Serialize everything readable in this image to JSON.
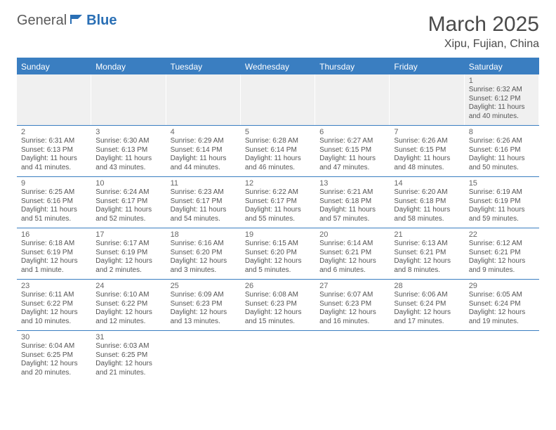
{
  "logo": {
    "text1": "General",
    "text2": "Blue"
  },
  "title": "March 2025",
  "location": "Xipu, Fujian, China",
  "colors": {
    "header_bg": "#3a7ec1",
    "header_text": "#ffffff",
    "border": "#3a7ec1",
    "first_row_bg": "#f0f0f0",
    "text": "#555555",
    "daynum": "#666666",
    "logo_blue": "#2a6fb5"
  },
  "day_headers": [
    "Sunday",
    "Monday",
    "Tuesday",
    "Wednesday",
    "Thursday",
    "Friday",
    "Saturday"
  ],
  "weeks": [
    [
      {
        "empty": true
      },
      {
        "empty": true
      },
      {
        "empty": true
      },
      {
        "empty": true
      },
      {
        "empty": true
      },
      {
        "empty": true
      },
      {
        "n": "1",
        "sr": "Sunrise: 6:32 AM",
        "ss": "Sunset: 6:12 PM",
        "dl": "Daylight: 11 hours and 40 minutes."
      }
    ],
    [
      {
        "n": "2",
        "sr": "Sunrise: 6:31 AM",
        "ss": "Sunset: 6:13 PM",
        "dl": "Daylight: 11 hours and 41 minutes."
      },
      {
        "n": "3",
        "sr": "Sunrise: 6:30 AM",
        "ss": "Sunset: 6:13 PM",
        "dl": "Daylight: 11 hours and 43 minutes."
      },
      {
        "n": "4",
        "sr": "Sunrise: 6:29 AM",
        "ss": "Sunset: 6:14 PM",
        "dl": "Daylight: 11 hours and 44 minutes."
      },
      {
        "n": "5",
        "sr": "Sunrise: 6:28 AM",
        "ss": "Sunset: 6:14 PM",
        "dl": "Daylight: 11 hours and 46 minutes."
      },
      {
        "n": "6",
        "sr": "Sunrise: 6:27 AM",
        "ss": "Sunset: 6:15 PM",
        "dl": "Daylight: 11 hours and 47 minutes."
      },
      {
        "n": "7",
        "sr": "Sunrise: 6:26 AM",
        "ss": "Sunset: 6:15 PM",
        "dl": "Daylight: 11 hours and 48 minutes."
      },
      {
        "n": "8",
        "sr": "Sunrise: 6:26 AM",
        "ss": "Sunset: 6:16 PM",
        "dl": "Daylight: 11 hours and 50 minutes."
      }
    ],
    [
      {
        "n": "9",
        "sr": "Sunrise: 6:25 AM",
        "ss": "Sunset: 6:16 PM",
        "dl": "Daylight: 11 hours and 51 minutes."
      },
      {
        "n": "10",
        "sr": "Sunrise: 6:24 AM",
        "ss": "Sunset: 6:17 PM",
        "dl": "Daylight: 11 hours and 52 minutes."
      },
      {
        "n": "11",
        "sr": "Sunrise: 6:23 AM",
        "ss": "Sunset: 6:17 PM",
        "dl": "Daylight: 11 hours and 54 minutes."
      },
      {
        "n": "12",
        "sr": "Sunrise: 6:22 AM",
        "ss": "Sunset: 6:17 PM",
        "dl": "Daylight: 11 hours and 55 minutes."
      },
      {
        "n": "13",
        "sr": "Sunrise: 6:21 AM",
        "ss": "Sunset: 6:18 PM",
        "dl": "Daylight: 11 hours and 57 minutes."
      },
      {
        "n": "14",
        "sr": "Sunrise: 6:20 AM",
        "ss": "Sunset: 6:18 PM",
        "dl": "Daylight: 11 hours and 58 minutes."
      },
      {
        "n": "15",
        "sr": "Sunrise: 6:19 AM",
        "ss": "Sunset: 6:19 PM",
        "dl": "Daylight: 11 hours and 59 minutes."
      }
    ],
    [
      {
        "n": "16",
        "sr": "Sunrise: 6:18 AM",
        "ss": "Sunset: 6:19 PM",
        "dl": "Daylight: 12 hours and 1 minute."
      },
      {
        "n": "17",
        "sr": "Sunrise: 6:17 AM",
        "ss": "Sunset: 6:19 PM",
        "dl": "Daylight: 12 hours and 2 minutes."
      },
      {
        "n": "18",
        "sr": "Sunrise: 6:16 AM",
        "ss": "Sunset: 6:20 PM",
        "dl": "Daylight: 12 hours and 3 minutes."
      },
      {
        "n": "19",
        "sr": "Sunrise: 6:15 AM",
        "ss": "Sunset: 6:20 PM",
        "dl": "Daylight: 12 hours and 5 minutes."
      },
      {
        "n": "20",
        "sr": "Sunrise: 6:14 AM",
        "ss": "Sunset: 6:21 PM",
        "dl": "Daylight: 12 hours and 6 minutes."
      },
      {
        "n": "21",
        "sr": "Sunrise: 6:13 AM",
        "ss": "Sunset: 6:21 PM",
        "dl": "Daylight: 12 hours and 8 minutes."
      },
      {
        "n": "22",
        "sr": "Sunrise: 6:12 AM",
        "ss": "Sunset: 6:21 PM",
        "dl": "Daylight: 12 hours and 9 minutes."
      }
    ],
    [
      {
        "n": "23",
        "sr": "Sunrise: 6:11 AM",
        "ss": "Sunset: 6:22 PM",
        "dl": "Daylight: 12 hours and 10 minutes."
      },
      {
        "n": "24",
        "sr": "Sunrise: 6:10 AM",
        "ss": "Sunset: 6:22 PM",
        "dl": "Daylight: 12 hours and 12 minutes."
      },
      {
        "n": "25",
        "sr": "Sunrise: 6:09 AM",
        "ss": "Sunset: 6:23 PM",
        "dl": "Daylight: 12 hours and 13 minutes."
      },
      {
        "n": "26",
        "sr": "Sunrise: 6:08 AM",
        "ss": "Sunset: 6:23 PM",
        "dl": "Daylight: 12 hours and 15 minutes."
      },
      {
        "n": "27",
        "sr": "Sunrise: 6:07 AM",
        "ss": "Sunset: 6:23 PM",
        "dl": "Daylight: 12 hours and 16 minutes."
      },
      {
        "n": "28",
        "sr": "Sunrise: 6:06 AM",
        "ss": "Sunset: 6:24 PM",
        "dl": "Daylight: 12 hours and 17 minutes."
      },
      {
        "n": "29",
        "sr": "Sunrise: 6:05 AM",
        "ss": "Sunset: 6:24 PM",
        "dl": "Daylight: 12 hours and 19 minutes."
      }
    ],
    [
      {
        "n": "30",
        "sr": "Sunrise: 6:04 AM",
        "ss": "Sunset: 6:25 PM",
        "dl": "Daylight: 12 hours and 20 minutes."
      },
      {
        "n": "31",
        "sr": "Sunrise: 6:03 AM",
        "ss": "Sunset: 6:25 PM",
        "dl": "Daylight: 12 hours and 21 minutes."
      },
      {
        "empty": true
      },
      {
        "empty": true
      },
      {
        "empty": true
      },
      {
        "empty": true
      },
      {
        "empty": true
      }
    ]
  ]
}
